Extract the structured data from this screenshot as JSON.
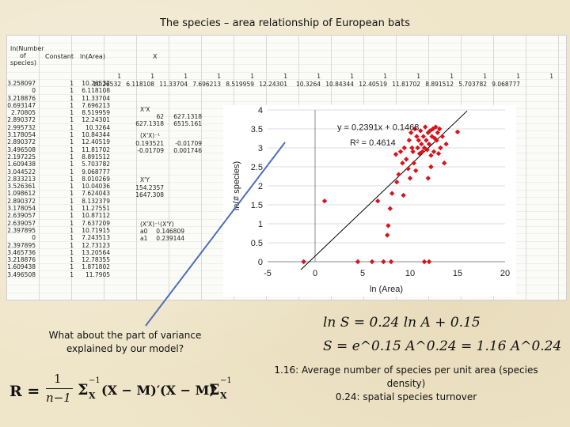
{
  "slide": {
    "title": "The species – area relationship of European bats",
    "question_lines": [
      "What about the part of variance",
      "explained by our model?"
    ],
    "eq1_text": "ln S = 0.24 ln A + 0.15",
    "eq2_text": "S = e^0.15 A^0.24 = 1.16 A^0.24",
    "note_lines": [
      "1.16: Average number of species per unit area (species",
      "density)",
      "0.24: spatial species turnover"
    ],
    "formula_R": {
      "lhs": "R =",
      "num": "1",
      "den": "n−1",
      "sigma": "Σ",
      "sub": "X",
      "sup": "−1",
      "mid": "(X − M)′(X − M)",
      "tail_sup": "−1"
    }
  },
  "spreadsheet": {
    "headers": {
      "ln_species": [
        "ln(Number",
        "of",
        "species)"
      ],
      "constant": "Constant",
      "ln_area": "ln(Area)",
      "x": "X"
    },
    "ln_species": [
      "3.258097",
      "0",
      "3.218876",
      "0.693147",
      "2.70805",
      "2.890372",
      "2.995732",
      "3.178054",
      "2.890372",
      "3.496508",
      "2.197225",
      "1.609438",
      "3.044522",
      "2.833213",
      "3.526361",
      "1.098612",
      "2.890372",
      "3.178054",
      "2.639057",
      "2.639057",
      "2.397895",
      "0",
      "2.397895",
      "3.465736",
      "3.218876",
      "1.609438",
      "3.496508"
    ],
    "constant": [
      "1",
      "1",
      "1",
      "1",
      "1",
      "1",
      "1",
      "1",
      "1",
      "1",
      "1",
      "1",
      "1",
      "1",
      "1",
      "1",
      "1",
      "1",
      "1",
      "1",
      "1",
      "1",
      "1",
      "1",
      "1",
      "1",
      "1"
    ],
    "ln_area": [
      "10.26532",
      "6.118108",
      "11.33704",
      "7.696213",
      "8.519959",
      "12.24301",
      "10.3264",
      "10.84344",
      "12.40519",
      "11.81702",
      "8.891512",
      "5.703782",
      "9.068777",
      "8.010269",
      "10.04036",
      "7.624043",
      "8.132379",
      "11.27551",
      "10.87112",
      "7.637209",
      "10.71915",
      "7.243513",
      "12.73123",
      "13.20564",
      "12.78355",
      "1.871802",
      "11.7905"
    ],
    "row_top": [
      "1",
      "1",
      "1",
      "1",
      "1",
      "1",
      "1",
      "1",
      "1",
      "1",
      "1",
      "1",
      "1",
      "1"
    ],
    "row_vals": [
      "10.26532",
      "6.118108",
      "11.33704",
      "7.696213",
      "8.519959",
      "12.24301",
      "10.3264",
      "10.84344",
      "12.40519",
      "11.81702",
      "8.891512",
      "5.703782",
      "9.068777"
    ],
    "ann": {
      "xx_label": "X'X",
      "xx_r1": [
        "62",
        "627.1318"
      ],
      "xx_r2": [
        "627.1318",
        "6515.161"
      ],
      "inv_label": "(X'X)⁻¹",
      "inv_r1": [
        "0.193521",
        "-0.01709"
      ],
      "inv_r2": [
        "-0.01709",
        "0.001746"
      ],
      "xy_label": "X'Y",
      "xy_r1": "154.2357",
      "xy_r2": "1647.308",
      "beta_label": "(X'X)⁻¹(X'Y)",
      "a0": "a0",
      "a0_val": "0.146809",
      "a1": "a1",
      "a1_val": "0.239144"
    }
  },
  "chart_data": {
    "type": "scatter",
    "xlabel": "ln (Area)",
    "ylabel": "ln(# species)",
    "xlim": [
      -5,
      20
    ],
    "ylim": [
      0,
      4
    ],
    "xticks": [
      -5,
      0,
      5,
      10,
      15,
      20
    ],
    "yticks": [
      0,
      0.5,
      1,
      1.5,
      2,
      2.5,
      3,
      3.5,
      4
    ],
    "trend_equation": "y = 0.2391x + 0.1468",
    "r_squared": "R² = 0.4614",
    "trend": {
      "slope": 0.2391,
      "intercept": 0.1468,
      "x_from": -1.5,
      "x_to": 16
    },
    "colors": {
      "points": "#d8141b",
      "trend": "#000000"
    },
    "points": [
      [
        -1.2,
        0
      ],
      [
        1.0,
        1.6
      ],
      [
        4.5,
        0
      ],
      [
        6.0,
        0
      ],
      [
        6.6,
        1.6
      ],
      [
        7.2,
        0
      ],
      [
        7.6,
        0.7
      ],
      [
        7.7,
        0.95
      ],
      [
        7.9,
        1.4
      ],
      [
        8.0,
        0
      ],
      [
        8.1,
        1.8
      ],
      [
        8.6,
        2.1
      ],
      [
        8.5,
        2.83
      ],
      [
        8.8,
        2.3
      ],
      [
        9.0,
        2.9
      ],
      [
        9.2,
        2.6
      ],
      [
        9.4,
        3.0
      ],
      [
        9.6,
        2.7
      ],
      [
        9.8,
        2.45
      ],
      [
        9.9,
        3.2
      ],
      [
        10.0,
        2.2
      ],
      [
        10.1,
        3.4
      ],
      [
        10.2,
        3.0
      ],
      [
        10.3,
        2.9
      ],
      [
        10.4,
        2.6
      ],
      [
        10.5,
        3.5
      ],
      [
        10.6,
        2.4
      ],
      [
        10.7,
        3.3
      ],
      [
        10.8,
        3.0
      ],
      [
        10.9,
        3.2
      ],
      [
        11.0,
        2.85
      ],
      [
        11.1,
        3.45
      ],
      [
        11.2,
        3.1
      ],
      [
        11.3,
        2.9
      ],
      [
        11.4,
        3.3
      ],
      [
        11.5,
        3.0
      ],
      [
        11.5,
        0
      ],
      [
        11.6,
        3.55
      ],
      [
        11.7,
        3.2
      ],
      [
        11.8,
        2.95
      ],
      [
        11.9,
        3.4
      ],
      [
        12.0,
        0
      ],
      [
        12.0,
        3.1
      ],
      [
        12.1,
        3.45
      ],
      [
        12.2,
        2.8
      ],
      [
        12.3,
        3.3
      ],
      [
        12.4,
        3.5
      ],
      [
        12.5,
        2.9
      ],
      [
        12.6,
        3.25
      ],
      [
        12.7,
        3.55
      ],
      [
        12.8,
        3.2
      ],
      [
        12.9,
        3.4
      ],
      [
        13.0,
        2.85
      ],
      [
        13.1,
        3.5
      ],
      [
        13.2,
        3.0
      ],
      [
        13.4,
        3.3
      ],
      [
        13.6,
        2.6
      ],
      [
        13.8,
        3.1
      ],
      [
        15.0,
        3.42
      ],
      [
        9.3,
        1.75
      ],
      [
        12.2,
        2.5
      ],
      [
        11.9,
        2.2
      ]
    ]
  }
}
